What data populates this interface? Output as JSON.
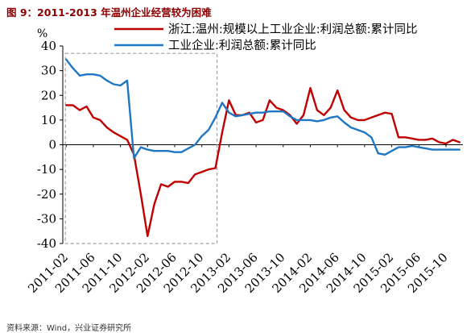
{
  "figure": {
    "title": "图 9：2011-2013 年温州企业经营较为困难",
    "source": "资料来源：Wind，兴业证券研究所"
  },
  "chart_data": {
    "type": "line",
    "title": "图 9：2011-2013 年温州企业经营较为困难",
    "xlabel": "",
    "ylabel": "%",
    "ylim": [
      -40,
      40
    ],
    "yticks": [
      -40,
      -30,
      -20,
      -10,
      0,
      10,
      20,
      30,
      40
    ],
    "grid": false,
    "legend_position": "top",
    "x_tick_labels": [
      "2011-02",
      "2011-06",
      "2011-10",
      "2012-02",
      "2012-06",
      "2012-10",
      "2013-02",
      "2013-06",
      "2013-10",
      "2014-02",
      "2014-06",
      "2014-10",
      "2015-02",
      "2015-06",
      "2015-10"
    ],
    "x": [
      "2011-02",
      "2011-03",
      "2011-04",
      "2011-05",
      "2011-06",
      "2011-07",
      "2011-08",
      "2011-09",
      "2011-10",
      "2011-11",
      "2011-12",
      "2012-01",
      "2012-02",
      "2012-03",
      "2012-04",
      "2012-05",
      "2012-06",
      "2012-07",
      "2012-08",
      "2012-09",
      "2012-10",
      "2012-11",
      "2012-12",
      "2013-01",
      "2013-02",
      "2013-03",
      "2013-04",
      "2013-05",
      "2013-06",
      "2013-07",
      "2013-08",
      "2013-09",
      "2013-10",
      "2013-11",
      "2013-12",
      "2014-01",
      "2014-02",
      "2014-03",
      "2014-04",
      "2014-05",
      "2014-06",
      "2014-07",
      "2014-08",
      "2014-09",
      "2014-10",
      "2014-11",
      "2014-12",
      "2015-01",
      "2015-02",
      "2015-03",
      "2015-04",
      "2015-05",
      "2015-06",
      "2015-07",
      "2015-08",
      "2015-09",
      "2015-10",
      "2015-11",
      "2015-12"
    ],
    "series": [
      {
        "name": "浙江:温州:规模以上工业企业:利润总额:累计同比",
        "color": "#c00000",
        "values": [
          16,
          16,
          14,
          15.5,
          11,
          10,
          7,
          5,
          3.5,
          2,
          -4,
          -20,
          -37,
          -24,
          -16,
          -17,
          -15,
          -15,
          -15.5,
          -12,
          -11,
          -10,
          -9.5,
          5,
          18,
          12,
          12,
          13,
          9,
          10,
          18,
          15,
          14,
          12,
          8.5,
          12,
          23,
          14,
          12,
          15,
          22,
          14,
          11,
          10,
          10,
          11,
          12,
          13,
          12.5,
          3,
          3,
          2.5,
          2,
          2,
          2.5,
          1,
          0.5,
          2,
          1
        ]
      },
      {
        "name": "工业企业:利润总额:累计同比",
        "color": "#1f77c4",
        "values": [
          34.5,
          31,
          28,
          28.5,
          28.5,
          28,
          26,
          24.5,
          24,
          26,
          -5.5,
          -1,
          -2,
          -2.5,
          -2.5,
          -2.5,
          -3,
          -3,
          -1.5,
          0,
          3.5,
          6,
          11,
          17,
          13,
          11.5,
          12,
          12.5,
          13,
          13,
          13.5,
          13.5,
          13.5,
          11.5,
          10,
          10,
          10,
          9.5,
          10,
          11,
          11.5,
          9,
          7,
          6,
          5,
          3,
          -3.5,
          -4,
          -2.5,
          -1,
          -1,
          -0.5,
          -1,
          -1.5,
          -2,
          -2,
          -2,
          -2,
          -2
        ]
      }
    ],
    "annotations": [
      {
        "type": "dashed-box",
        "x_from": "2011-02",
        "x_to": "2012-12",
        "y_from": -40,
        "y_to": 37
      }
    ]
  },
  "colors": {
    "title": "#8b0000",
    "series_a": "#c00000",
    "series_b": "#1f77c4",
    "highlight_box": "#a0a0a0",
    "axis": "#000000"
  }
}
